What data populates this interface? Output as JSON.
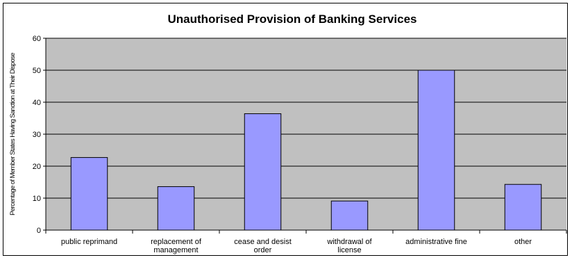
{
  "chart_data": {
    "type": "bar",
    "title": "Unauthorised Provision of Banking Services",
    "xlabel": "",
    "ylabel": "Percentage of Member States Having Sanction at Their Dispose",
    "ylim": [
      0,
      60
    ],
    "yticks": [
      0,
      10,
      20,
      30,
      40,
      50,
      60
    ],
    "grid": true,
    "legend": "none",
    "categories": [
      [
        "public reprimand"
      ],
      [
        "replacement of",
        "management"
      ],
      [
        "cease and desist",
        "order"
      ],
      [
        "withdrawal of",
        "license"
      ],
      [
        "administrative fine"
      ],
      [
        "other"
      ]
    ],
    "values": [
      22.7,
      13.6,
      36.4,
      9.1,
      50,
      14.3
    ],
    "colors": {
      "plot_background": "#c0c0c0",
      "bar_fill": "#9999ff",
      "bar_stroke": "#000000",
      "gridline": "#000000"
    }
  }
}
